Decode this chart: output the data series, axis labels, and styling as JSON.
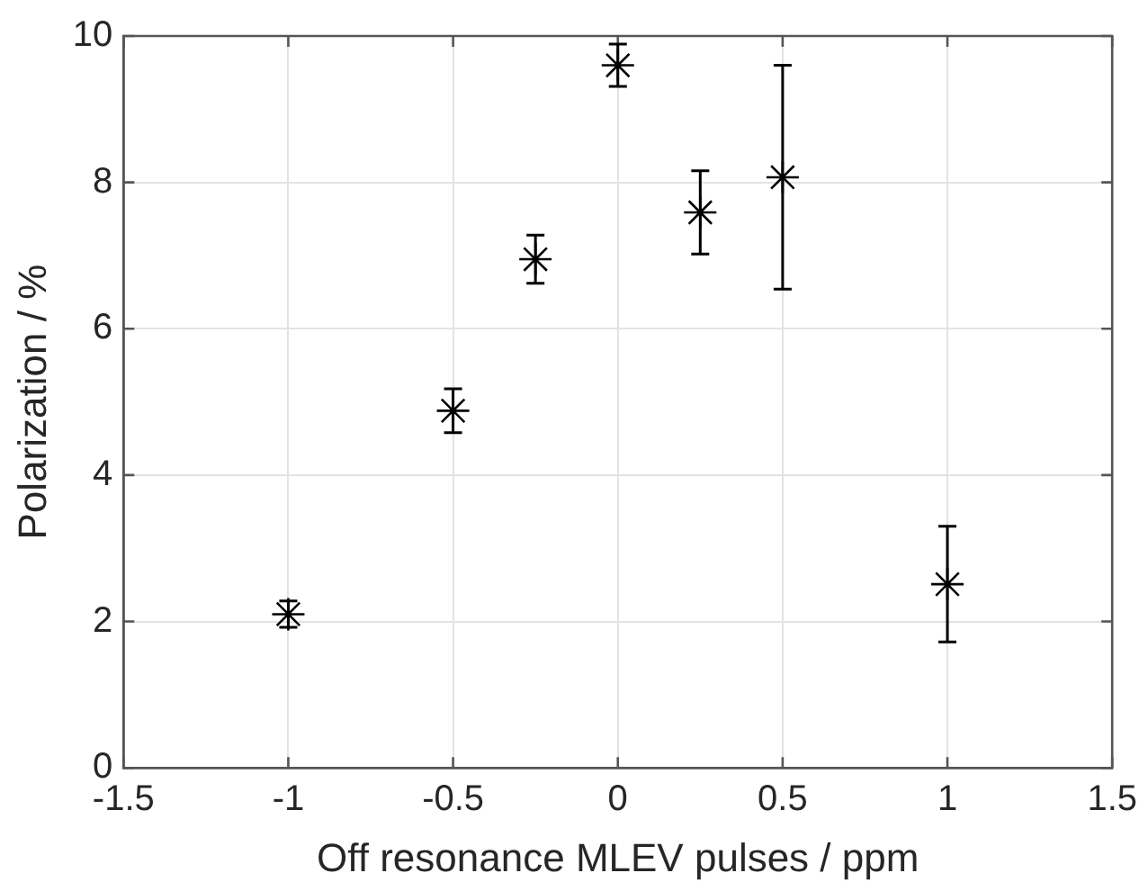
{
  "chart_data": {
    "type": "scatter",
    "xlabel": "Off resonance MLEV pulses / ppm",
    "ylabel": "Polarization / %",
    "x": [
      -1,
      -0.5,
      -0.25,
      0,
      0.25,
      0.5,
      1
    ],
    "series": [
      {
        "color": "#000000",
        "values": [
          2.1,
          4.88,
          6.95,
          9.6,
          7.59,
          8.07,
          2.51
        ],
        "errors": [
          0.18,
          0.3,
          0.33,
          0.29,
          0.57,
          1.53,
          0.79
        ]
      }
    ],
    "xlim": [
      -1.5,
      1.5
    ],
    "xticks": [
      -1.5,
      -1,
      -0.5,
      0,
      0.5,
      1,
      1.5
    ],
    "ylim": [
      0,
      10
    ],
    "yticks": [
      0,
      2,
      4,
      6,
      8,
      10
    ],
    "grid": true,
    "legend": false,
    "marker": "cross"
  }
}
